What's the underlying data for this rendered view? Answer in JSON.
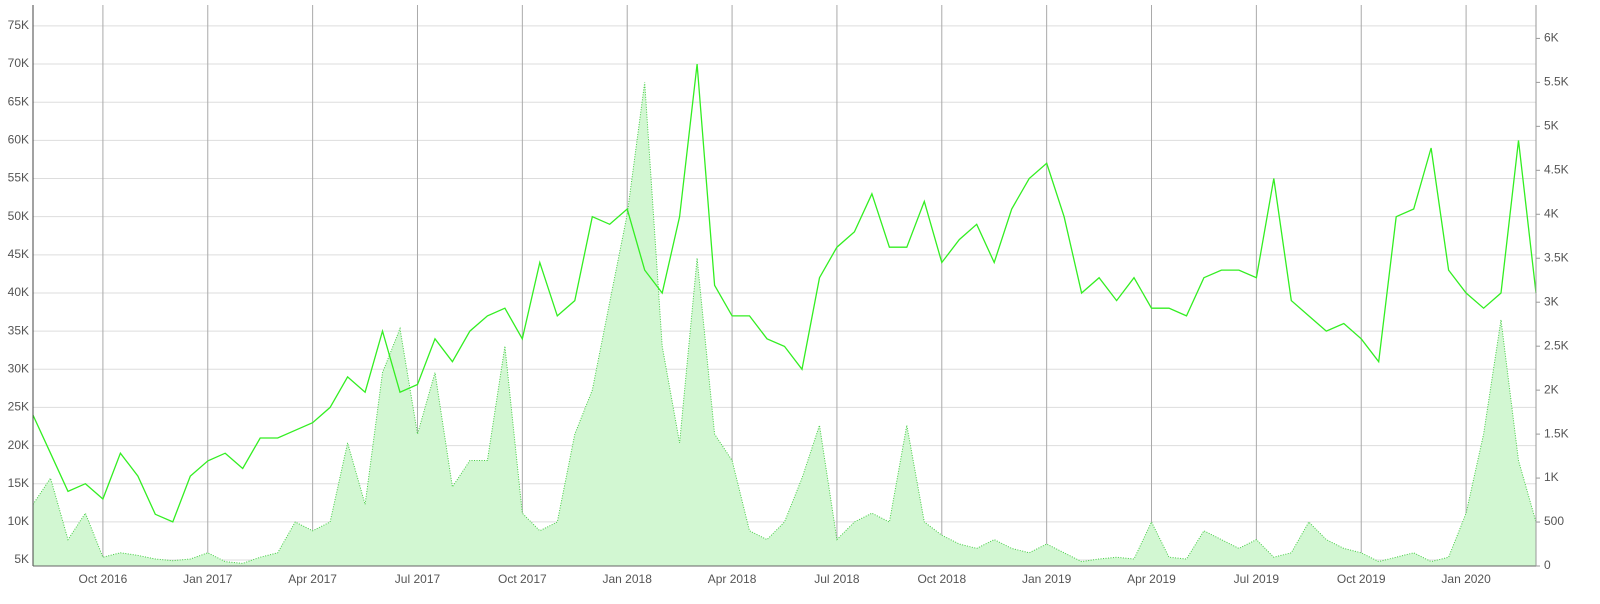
{
  "chart_data": {
    "type": "line",
    "categories": [
      null,
      null,
      null,
      null,
      "Oct 2016",
      null,
      null,
      null,
      null,
      null,
      "Jan 2017",
      null,
      null,
      null,
      null,
      null,
      "Apr 2017",
      null,
      null,
      null,
      null,
      null,
      "Jul 2017",
      null,
      null,
      null,
      null,
      null,
      "Oct 2017",
      null,
      null,
      null,
      null,
      null,
      "Jan 2018",
      null,
      null,
      null,
      null,
      null,
      "Apr 2018",
      null,
      null,
      null,
      null,
      null,
      "Jul 2018",
      null,
      null,
      null,
      null,
      null,
      "Oct 2018",
      null,
      null,
      null,
      null,
      null,
      "Jan 2019",
      null,
      null,
      null,
      null,
      null,
      "Apr 2019",
      null,
      null,
      null,
      null,
      null,
      "Jul 2019",
      null,
      null,
      null,
      null,
      null,
      "Oct 2019",
      null,
      null,
      null,
      null,
      null,
      "Jan 2020",
      null,
      null,
      null,
      null
    ],
    "series": [
      {
        "type": "line",
        "color": "#33ee22",
        "values": [
          24000,
          19000,
          14000,
          15000,
          13000,
          19000,
          16000,
          11000,
          10000,
          16000,
          18000,
          19000,
          17000,
          21000,
          21000,
          22000,
          23000,
          25000,
          29000,
          27000,
          35000,
          27000,
          28000,
          34000,
          31000,
          35000,
          37000,
          38000,
          34000,
          44000,
          37000,
          39000,
          50000,
          49000,
          51000,
          43000,
          40000,
          50000,
          70000,
          41000,
          37000,
          37000,
          34000,
          33000,
          30000,
          42000,
          46000,
          48000,
          53000,
          46000,
          46000,
          52000,
          44000,
          47000,
          49000,
          44000,
          51000,
          55000,
          57000,
          50000,
          40000,
          42000,
          39000,
          42000,
          38000,
          38000,
          37000,
          42000,
          43000,
          43000,
          42000,
          55000,
          39000,
          37000,
          35000,
          36000,
          34000,
          31000,
          50000,
          51000,
          59000,
          43000,
          40000,
          38000,
          40000,
          60000,
          40000
        ]
      },
      {
        "type": "area",
        "axis": "y2",
        "color": "#44cc44",
        "fill": "#d2f7d2",
        "values": [
          700,
          1000,
          300,
          600,
          100,
          150,
          120,
          80,
          60,
          80,
          150,
          50,
          30,
          100,
          150,
          500,
          400,
          500,
          1400,
          700,
          2200,
          2700,
          1500,
          2200,
          900,
          1200,
          1200,
          2500,
          600,
          400,
          500,
          1500,
          2000,
          3000,
          4000,
          5500,
          2500,
          1400,
          3500,
          1500,
          1200,
          400,
          300,
          500,
          1000,
          1600,
          300,
          500,
          600,
          500,
          1600,
          500,
          350,
          250,
          200,
          300,
          200,
          150,
          250,
          150,
          50,
          80,
          100,
          80,
          500,
          100,
          80,
          400,
          300,
          200,
          300,
          100,
          150,
          500,
          300,
          200,
          150,
          50,
          100,
          150,
          50,
          100,
          600,
          1500,
          2800,
          1200,
          500
        ]
      }
    ],
    "ylim": [
      4220,
      77740
    ],
    "yticks": [
      {
        "value": 5000,
        "label": "5K"
      },
      {
        "value": 10000,
        "label": "10K"
      },
      {
        "value": 15000,
        "label": "15K"
      },
      {
        "value": 20000,
        "label": "20K"
      },
      {
        "value": 25000,
        "label": "25K"
      },
      {
        "value": 30000,
        "label": "30K"
      },
      {
        "value": 35000,
        "label": "35K"
      },
      {
        "value": 40000,
        "label": "40K"
      },
      {
        "value": 45000,
        "label": "45K"
      },
      {
        "value": 50000,
        "label": "50K"
      },
      {
        "value": 55000,
        "label": "55K"
      },
      {
        "value": 60000,
        "label": "60K"
      },
      {
        "value": 65000,
        "label": "65K"
      },
      {
        "value": 70000,
        "label": "70K"
      },
      {
        "value": 75000,
        "label": "75K"
      }
    ],
    "y2lim": [
      0,
      6380
    ],
    "y2ticks": [
      0,
      500,
      {
        "value": 1000,
        "label": "1K"
      },
      {
        "value": 1500,
        "label": "1.5K"
      },
      {
        "value": 2000,
        "label": "2K"
      },
      {
        "value": 2500,
        "label": "2.5K"
      },
      {
        "value": 3000,
        "label": "3K"
      },
      {
        "value": 3500,
        "label": "3.5K"
      },
      {
        "value": 4000,
        "label": "4K"
      },
      {
        "value": 4500,
        "label": "4.5K"
      },
      {
        "value": 5000,
        "label": "5K"
      },
      {
        "value": 5500,
        "label": "5.5K"
      },
      {
        "value": 6000,
        "label": "6K"
      }
    ],
    "grid": true
  }
}
